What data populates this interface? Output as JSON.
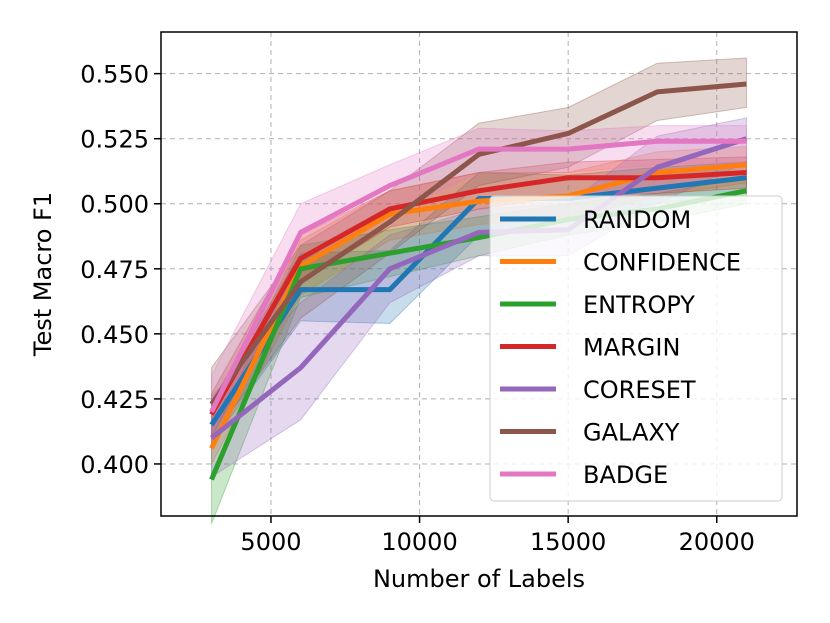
{
  "chart_data": {
    "type": "line",
    "xlabel": "Number of Labels",
    "ylabel": "Test Macro F1",
    "xlim": [
      1300,
      22700
    ],
    "ylim": [
      0.38,
      0.566
    ],
    "xticks": [
      5000,
      10000,
      15000,
      20000
    ],
    "xtick_labels": [
      "5000",
      "10000",
      "15000",
      "20000"
    ],
    "yticks": [
      0.4,
      0.425,
      0.45,
      0.475,
      0.5,
      0.525,
      0.55
    ],
    "ytick_labels": [
      "0.400",
      "0.425",
      "0.450",
      "0.475",
      "0.500",
      "0.525",
      "0.550"
    ],
    "grid": true,
    "legend_position": "lower-right",
    "x": [
      3000,
      6000,
      9000,
      12000,
      15000,
      18000,
      21000
    ],
    "series": [
      {
        "name": "RANDOM",
        "color": "#1f77b4",
        "values": [
          0.415,
          0.467,
          0.467,
          0.502,
          0.502,
          0.506,
          0.51
        ],
        "lower": [
          0.408,
          0.455,
          0.454,
          0.488,
          0.493,
          0.5,
          0.504
        ],
        "upper": [
          0.424,
          0.481,
          0.482,
          0.512,
          0.511,
          0.514,
          0.516
        ]
      },
      {
        "name": "CONFIDENCE",
        "color": "#ff7f0e",
        "values": [
          0.406,
          0.476,
          0.496,
          0.501,
          0.503,
          0.512,
          0.515
        ],
        "lower": [
          0.4,
          0.465,
          0.486,
          0.492,
          0.494,
          0.503,
          0.508
        ],
        "upper": [
          0.414,
          0.486,
          0.505,
          0.512,
          0.512,
          0.52,
          0.522
        ]
      },
      {
        "name": "ENTROPY",
        "color": "#2ca02c",
        "values": [
          0.394,
          0.475,
          0.481,
          0.487,
          0.494,
          0.498,
          0.505
        ],
        "lower": [
          0.377,
          0.464,
          0.472,
          0.48,
          0.488,
          0.493,
          0.5
        ],
        "upper": [
          0.41,
          0.484,
          0.49,
          0.495,
          0.5,
          0.504,
          0.51
        ]
      },
      {
        "name": "MARGIN",
        "color": "#d62728",
        "values": [
          0.419,
          0.479,
          0.498,
          0.505,
          0.51,
          0.51,
          0.512
        ],
        "lower": [
          0.411,
          0.47,
          0.491,
          0.498,
          0.503,
          0.504,
          0.506
        ],
        "upper": [
          0.427,
          0.488,
          0.505,
          0.512,
          0.516,
          0.517,
          0.518
        ]
      },
      {
        "name": "CORESET",
        "color": "#9467bd",
        "values": [
          0.41,
          0.437,
          0.475,
          0.489,
          0.49,
          0.514,
          0.525
        ],
        "lower": [
          0.395,
          0.417,
          0.462,
          0.48,
          0.48,
          0.5,
          0.516
        ],
        "upper": [
          0.426,
          0.462,
          0.488,
          0.498,
          0.5,
          0.526,
          0.533
        ]
      },
      {
        "name": "GALAXY",
        "color": "#8c564b",
        "values": [
          0.423,
          0.47,
          0.493,
          0.519,
          0.527,
          0.543,
          0.546
        ],
        "lower": [
          0.41,
          0.456,
          0.481,
          0.507,
          0.514,
          0.532,
          0.537
        ],
        "upper": [
          0.437,
          0.484,
          0.505,
          0.531,
          0.537,
          0.554,
          0.556
        ]
      },
      {
        "name": "BADGE",
        "color": "#e377c2",
        "values": [
          0.42,
          0.489,
          0.507,
          0.521,
          0.521,
          0.524,
          0.524
        ],
        "lower": [
          0.406,
          0.478,
          0.496,
          0.512,
          0.512,
          0.515,
          0.516
        ],
        "upper": [
          0.434,
          0.5,
          0.515,
          0.529,
          0.528,
          0.53,
          0.53
        ]
      }
    ]
  }
}
